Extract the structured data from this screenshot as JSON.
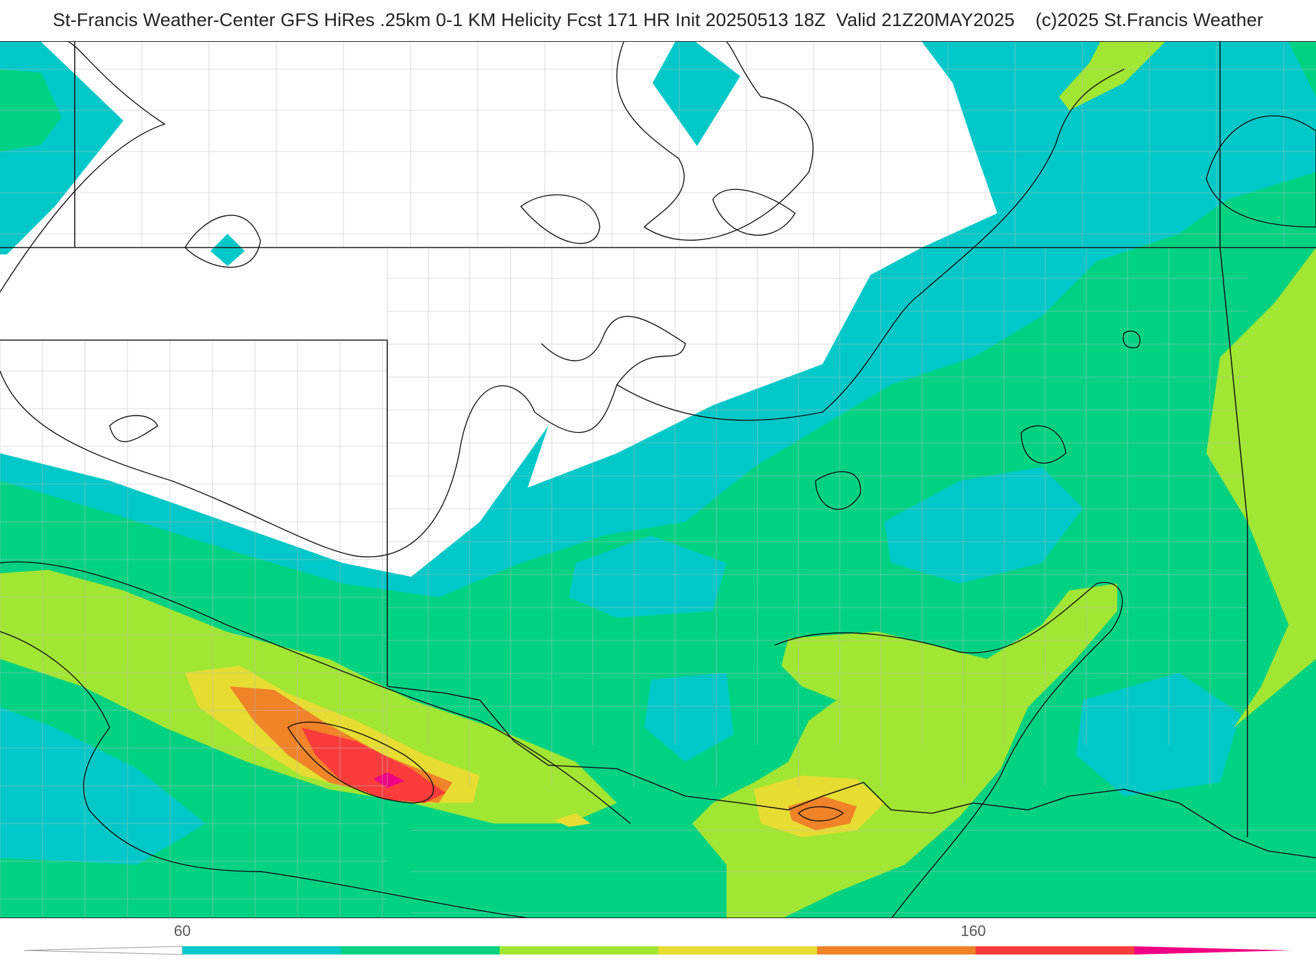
{
  "header": {
    "title": "St-Francis Weather-Center GFS HiRes .25km 0-1 KM Helicity Fcst 171 HR Init 20250513 18Z  Valid 21Z20MAY2025    (c)2025 St.Francis Weather"
  },
  "colorbar": {
    "tick_labels": [
      "60",
      "160"
    ],
    "colors": [
      "#00c8c8",
      "#00d282",
      "#a0e632",
      "#e6dc32",
      "#f08228",
      "#fa3c3c",
      "#f00082"
    ]
  },
  "palette": {
    "teal": "#00c8c8",
    "green": "#00d282",
    "lime": "#a0e632",
    "yellow": "#e6dc32",
    "orange": "#f08228",
    "red": "#fa3c3c",
    "magenta": "#f00082"
  }
}
